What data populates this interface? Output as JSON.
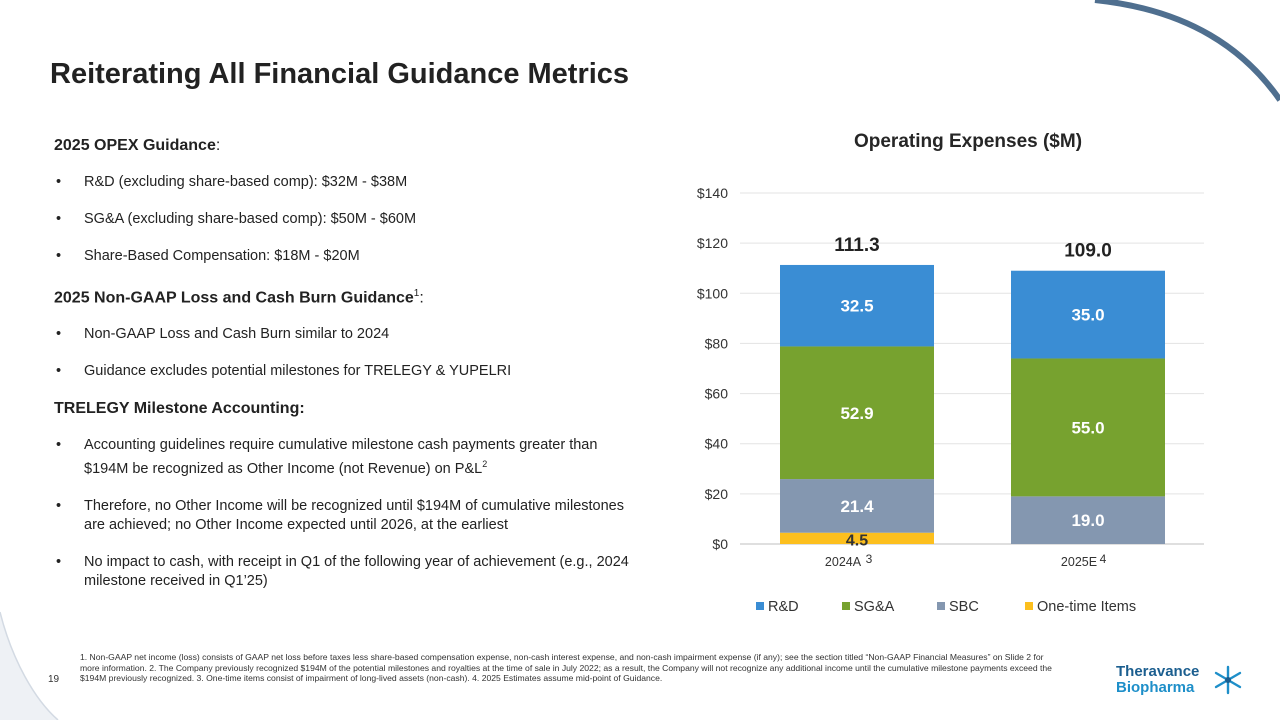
{
  "page": {
    "title": "Reiterating All Financial Guidance Metrics",
    "page_number": "19"
  },
  "left": {
    "section1_title": "2025 OPEX Guidance",
    "section1_suffix": ":",
    "section1_bullets": [
      "R&D (excluding share-based comp): $32M - $38M",
      "SG&A (excluding share-based comp): $50M - $60M",
      "Share-Based Compensation: $18M - $20M"
    ],
    "section2_title": "2025 Non-GAAP Loss and Cash Burn Guidance",
    "section2_sup": "1",
    "section2_suffix": ":",
    "section2_bullets": [
      "Non-GAAP Loss and Cash Burn similar to 2024",
      "Guidance excludes potential milestones for TRELEGY & YUPELRI"
    ],
    "section3_title": "TRELEGY Milestone Accounting:",
    "section3_bullet1": "Accounting guidelines require cumulative milestone cash payments greater than $194M be recognized as Other Income (not Revenue) on P&L",
    "section3_bullet1_sup": "2",
    "section3_bullet2": "Therefore, no Other Income will be recognized until $194M of cumulative milestones are achieved; no Other Income expected until 2026, at the earliest",
    "section3_bullet3": "No impact to cash, with receipt in Q1 of the following year of achievement (e.g., 2024 milestone received in Q1’25)"
  },
  "chart_data": {
    "type": "bar",
    "stacked": true,
    "title": "Operating Expenses ($M)",
    "categories": [
      "2024A",
      "2025E"
    ],
    "category_superscripts": [
      "3",
      "4"
    ],
    "series": [
      {
        "name": "One-time Items",
        "values": [
          4.5,
          null
        ],
        "labels": [
          "4.5",
          ""
        ],
        "color": "#fcbf1e"
      },
      {
        "name": "SBC",
        "values": [
          21.4,
          19.0
        ],
        "labels": [
          "21.4",
          "19.0"
        ],
        "color": "#8497b0"
      },
      {
        "name": "SG&A",
        "values": [
          52.9,
          55.0
        ],
        "labels": [
          "52.9",
          "55.0"
        ],
        "color": "#77a22f"
      },
      {
        "name": "R&D",
        "values": [
          32.5,
          35.0
        ],
        "labels": [
          "32.5",
          "35.0"
        ],
        "color": "#3a8dd4"
      }
    ],
    "totals": [
      "111.3",
      "109.0"
    ],
    "ylim": [
      0,
      140
    ],
    "yticks": [
      0,
      20,
      40,
      60,
      80,
      100,
      120,
      140
    ],
    "ytick_labels": [
      "$0",
      "$20",
      "$40",
      "$60",
      "$80",
      "$100",
      "$120",
      "$140"
    ],
    "legend_order": [
      "R&D",
      "SG&A",
      "SBC",
      "One-time Items"
    ],
    "legend_position": "bottom",
    "grid": true
  },
  "footnote": "1. Non-GAAP net income (loss) consists of GAAP net loss before taxes less share-based compensation expense, non-cash interest expense, and non-cash impairment expense (if any); see the section titled “Non-GAAP Financial Measures” on Slide 2 for more information. 2. The Company previously recognized $194M of the potential milestones and royalties at the time of sale in July 2022; as a result, the Company will not recognize any additional income until the cumulative milestone payments exceed the $194M previously recognized. 3. One-time items consist of impairment of long-lived assets (non-cash). 4. 2025 Estimates assume mid-point of Guidance.",
  "logo": {
    "line1": "Theravance",
    "line2": "Biopharma"
  },
  "colors": {
    "accent_blue": "#1b5e8f",
    "curve_gray": "#4f6f8f"
  }
}
